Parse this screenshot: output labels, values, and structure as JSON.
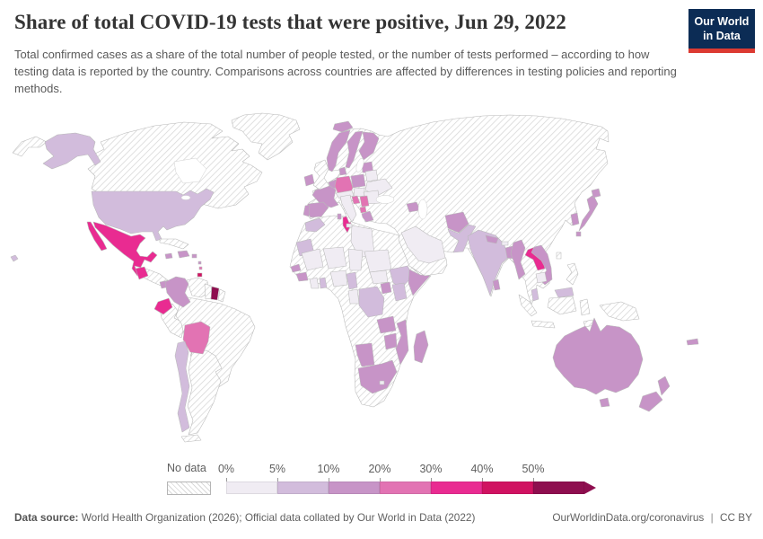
{
  "header": {
    "title": "Share of total COVID-19 tests that were positive, Jun 29, 2022",
    "subtitle": "Total confirmed cases as a share of the total number of people tested, or the number of tests performed – according to how testing data is reported by the country. Comparisons across countries are affected by differences in testing policies and reporting methods.",
    "logo_line1": "Our World",
    "logo_line2": "in Data",
    "logo_bg": "#0c2c55",
    "logo_bar": "#dc3a32"
  },
  "legend": {
    "no_data_label": "No data",
    "buckets": [
      {
        "label": "0%",
        "color": "#f0ecf3"
      },
      {
        "label": "5%",
        "color": "#d2bcdc"
      },
      {
        "label": "10%",
        "color": "#c794c7"
      },
      {
        "label": "20%",
        "color": "#e273b3"
      },
      {
        "label": "30%",
        "color": "#e92b91"
      },
      {
        "label": "40%",
        "color": "#d01261"
      },
      {
        "label": "50%",
        "color": "#8e0e4f"
      }
    ]
  },
  "footer": {
    "source_label": "Data source:",
    "source_text": "World Health Organization (2026); Official data collated by Our World in Data (2022)",
    "url": "OurWorldinData.org/coronavirus",
    "divider": "|",
    "license": "CC BY"
  },
  "map": {
    "bucket_colors": {
      "no-data": "hatch",
      "0-5": "#f0ecf3",
      "5-10": "#d2bcdc",
      "10-20": "#c794c7",
      "20-30": "#e273b3",
      "30-40": "#e92b91",
      "40-50": "#d01261",
      "50+": "#8e0e4f"
    },
    "regions": {
      "chukotka-west": "no-data",
      "greenland": "no-data",
      "canada": "no-data",
      "cuba": "no-data",
      "central-america": "no-data",
      "venezuela": "no-data",
      "guyana": "no-data",
      "french-guiana": "no-data",
      "peru": "no-data",
      "brazil": "no-data",
      "argentina": "no-data",
      "tierra-del-fuego": "no-data",
      "uk": "no-data",
      "eurasia": "no-data",
      "africa": "no-data",
      "taiwan": "no-data",
      "philippines": "no-data",
      "sumatra": "no-data",
      "java": "no-data",
      "borneo-indonesia": "no-data",
      "sulawesi": "no-data",
      "timor": "no-data",
      "papua-new-guinea": "no-data",
      "saudi-arabia": "0-5",
      "italy": "0-5",
      "sicily": "0-5",
      "switzerland-austria": "0-5",
      "hungary-slovakia": "0-5",
      "belarus": "0-5",
      "ukraine": "0-5",
      "romania-bulgaria": "0-5",
      "libya": "0-5",
      "mali": "0-5",
      "niger": "0-5",
      "chad": "0-5",
      "sudan": "0-5",
      "south-sudan": "0-5",
      "nigeria": "0-5",
      "cote-divoire": "0-5",
      "gabon-congo": "0-5",
      "lesotho": "0-5",
      "cambodia": "0-5",
      "bhutan": "0-5",
      "alaska": "5-10",
      "usa": "5-10",
      "hawaii": "5-10",
      "chile": "5-10",
      "morocco": "5-10",
      "mauritania": "5-10",
      "ghana": "5-10",
      "cameroon": "5-10",
      "drc": "5-10",
      "ethiopia": "5-10",
      "kenya": "5-10",
      "pakistan": "5-10",
      "india": "5-10",
      "malaysia": "5-10",
      "borneo-malaysia": "5-10",
      "iceland": "10-20",
      "ireland": "10-20",
      "norway": "10-20",
      "sweden": "10-20",
      "finland": "10-20",
      "denmark": "10-20",
      "baltics": "10-20",
      "benelux": "10-20",
      "france": "10-20",
      "spain": "10-20",
      "portugal": "10-20",
      "poland": "10-20",
      "greece": "10-20",
      "sardinia": "10-20",
      "azerbaijan": "10-20",
      "afghanistan": "10-20",
      "nepal": "10-20",
      "bangladesh": "10-20",
      "myanmar": "10-20",
      "vietnam": "10-20",
      "south-korea": "10-20",
      "japan": "10-20",
      "hokkaido": "10-20",
      "kyushu": "10-20",
      "sri-lanka": "10-20",
      "senegal": "10-20",
      "guinea": "10-20",
      "uganda": "10-20",
      "somalia": "10-20",
      "zambia": "10-20",
      "zimbabwe": "10-20",
      "mozambique": "10-20",
      "namibia": "10-20",
      "south-africa": "10-20",
      "madagascar": "10-20",
      "australia": "10-20",
      "tasmania": "10-20",
      "new-zealand-north": "10-20",
      "new-zealand-south": "10-20",
      "fiji": "10-20",
      "hispaniola": "10-20",
      "jamaica": "10-20",
      "puerto-rico": "10-20",
      "panama": "10-20",
      "colombia": "10-20",
      "antilles-1": "10-20",
      "germany": "20-30",
      "croatia": "20-30",
      "serbia": "20-30",
      "albania-macedonia": "20-30",
      "bolivia": "20-30",
      "antilles-2": "20-30",
      "mexico": "30-40",
      "baja-california": "30-40",
      "guatemala": "30-40",
      "ecuador": "30-40",
      "tunisia": "30-40",
      "laos": "30-40",
      "trinidad": "40-50",
      "suriname": "50+"
    }
  },
  "chart_data": {
    "type": "choropleth_map",
    "title": "Share of total COVID-19 tests that were positive",
    "date": "Jun 29, 2022",
    "legend_buckets": [
      "No data",
      "0%",
      "5%",
      "10%",
      "20%",
      "30%",
      "40%",
      "50%"
    ],
    "countries": {
      "United States": "5-10%",
      "Canada": "No data",
      "Greenland": "No data",
      "Mexico": "30-40%",
      "Guatemala": "30-40%",
      "Cuba": "No data",
      "Dominican Republic": "10-20%",
      "Panama": "10-20%",
      "Colombia": "10-20%",
      "Venezuela": "No data",
      "Guyana": "No data",
      "Suriname": ">50%",
      "Ecuador": "30-40%",
      "Peru": "No data",
      "Brazil": "No data",
      "Bolivia": "20-30%",
      "Chile": "5-10%",
      "Argentina": "No data",
      "Iceland": "10-20%",
      "United Kingdom": "No data",
      "Ireland": "10-20%",
      "Norway": "10-20%",
      "Sweden": "10-20%",
      "Finland": "10-20%",
      "France": "10-20%",
      "Spain": "10-20%",
      "Portugal": "10-20%",
      "Germany": "20-30%",
      "Poland": "10-20%",
      "Italy": "0-5%",
      "Croatia": "20-30%",
      "Serbia": "20-30%",
      "Greece": "10-20%",
      "Ukraine": "0-5%",
      "Romania": "0-5%",
      "Russia": "No data",
      "Turkey": "No data",
      "Tunisia": "30-40%",
      "Morocco": "5-10%",
      "Algeria": "No data",
      "Libya": "0-5%",
      "Egypt": "No data",
      "Saudi Arabia": "0-5%",
      "Iran": "No data",
      "Kazakhstan": "No data",
      "Azerbaijan": "10-20%",
      "Afghanistan": "10-20%",
      "Pakistan": "5-10%",
      "India": "5-10%",
      "Nepal": "10-20%",
      "Bangladesh": "10-20%",
      "Myanmar": "10-20%",
      "Thailand": "No data",
      "Laos": "30-40%",
      "Vietnam": "10-20%",
      "Cambodia": "0-5%",
      "Malaysia": "5-10%",
      "Indonesia": "No data",
      "Philippines": "No data",
      "China": "No data",
      "Mongolia": "No data",
      "South Korea": "10-20%",
      "Japan": "10-20%",
      "Sri Lanka": "10-20%",
      "Nigeria": "0-5%",
      "Niger": "0-5%",
      "Mali": "0-5%",
      "Chad": "0-5%",
      "Sudan": "0-5%",
      "Ethiopia": "5-10%",
      "Somalia": "10-20%",
      "Kenya": "5-10%",
      "Uganda": "10-20%",
      "DR Congo": "5-10%",
      "Cameroon": "5-10%",
      "Tanzania": "No data",
      "Angola": "No data",
      "Zambia": "10-20%",
      "Zimbabwe": "10-20%",
      "Mozambique": "10-20%",
      "Namibia": "10-20%",
      "Botswana": "No data",
      "South Africa": "10-20%",
      "Madagascar": "10-20%",
      "Australia": "10-20%",
      "New Zealand": "10-20%",
      "Papua New Guinea": "No data",
      "Fiji": "10-20%"
    }
  }
}
